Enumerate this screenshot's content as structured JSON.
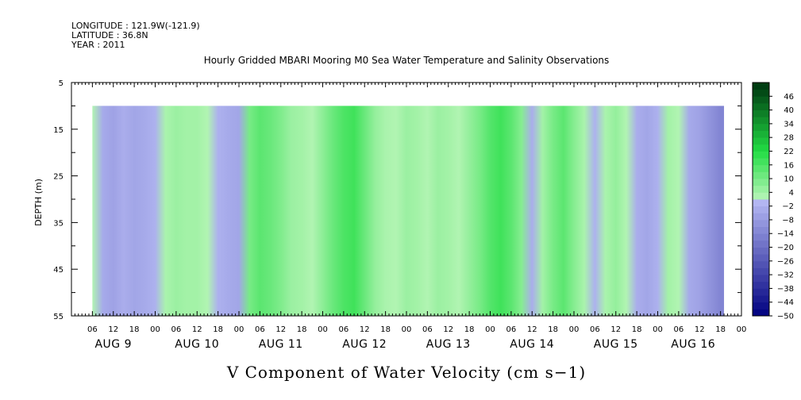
{
  "header": {
    "longitude": "LONGITUDE : 121.9W(-121.9)",
    "latitude": "LATITUDE : 36.8N",
    "year": "YEAR : 2011"
  },
  "chart_data": {
    "type": "heatmap",
    "title": "Hourly Gridded MBARI Mooring M0 Sea Water Temperature and Salinity Observations",
    "caption": "V Component of Water Velocity (cm s−1)",
    "ylabel": "DEPTH (m)",
    "xlabel": "",
    "ylim": [
      55,
      5
    ],
    "y_ticks": [
      5,
      15,
      25,
      35,
      45,
      55
    ],
    "y_minor_ticks": [
      10,
      20,
      30,
      40,
      50
    ],
    "x_range_hours": [
      0,
      192
    ],
    "data_start_hour": 6,
    "data_end_hour": 187,
    "data_top_depth": 10,
    "data_bottom_depth": 55,
    "x_hour_labels": [
      "06",
      "12",
      "18",
      "00",
      "06",
      "12",
      "18",
      "00",
      "06",
      "12",
      "18",
      "00",
      "06",
      "12",
      "18",
      "00",
      "06",
      "12",
      "18",
      "00",
      "06",
      "12",
      "18",
      "00",
      "06",
      "12",
      "18",
      "00",
      "06",
      "12",
      "18",
      "00"
    ],
    "day_labels": [
      "AUG  9",
      "AUG 10",
      "AUG 11",
      "AUG 12",
      "AUG 13",
      "AUG 14",
      "AUG 15",
      "AUG 16"
    ],
    "colorbar": {
      "min": -50,
      "max": 50,
      "step": 3,
      "labels": [
        "46",
        "40",
        "34",
        "28",
        "22",
        "16",
        "10",
        "4",
        "−2",
        "−8",
        "−14",
        "−20",
        "−26",
        "−32",
        "−38",
        "−44",
        "−50"
      ],
      "colors": {
        "neg_strong": "#000080",
        "neg_weak": "#b8bcf5",
        "pos_weak": "#b8f5b8",
        "pos_mid": "#22dd44",
        "pos_strong": "#003d12"
      }
    },
    "columns": [
      {
        "hour": 6,
        "v": 2
      },
      {
        "hour": 9,
        "v": -4
      },
      {
        "hour": 12,
        "v": -6
      },
      {
        "hour": 15,
        "v": -3
      },
      {
        "hour": 18,
        "v": -5
      },
      {
        "hour": 21,
        "v": -4
      },
      {
        "hour": 24,
        "v": -2
      },
      {
        "hour": 27,
        "v": 3
      },
      {
        "hour": 30,
        "v": 5
      },
      {
        "hour": 33,
        "v": 4
      },
      {
        "hour": 36,
        "v": 4
      },
      {
        "hour": 39,
        "v": 2
      },
      {
        "hour": 42,
        "v": -2
      },
      {
        "hour": 45,
        "v": -4
      },
      {
        "hour": 48,
        "v": -5
      },
      {
        "hour": 51,
        "v": 10
      },
      {
        "hour": 54,
        "v": 14
      },
      {
        "hour": 57,
        "v": 12
      },
      {
        "hour": 60,
        "v": 9
      },
      {
        "hour": 63,
        "v": 5
      },
      {
        "hour": 66,
        "v": 4
      },
      {
        "hour": 69,
        "v": 2
      },
      {
        "hour": 72,
        "v": 7
      },
      {
        "hour": 75,
        "v": 12
      },
      {
        "hour": 78,
        "v": 16
      },
      {
        "hour": 81,
        "v": 18
      },
      {
        "hour": 84,
        "v": 12
      },
      {
        "hour": 87,
        "v": 6
      },
      {
        "hour": 90,
        "v": 3
      },
      {
        "hour": 93,
        "v": 2
      },
      {
        "hour": 96,
        "v": 5
      },
      {
        "hour": 99,
        "v": 4
      },
      {
        "hour": 102,
        "v": 2
      },
      {
        "hour": 105,
        "v": 5
      },
      {
        "hour": 108,
        "v": 4
      },
      {
        "hour": 111,
        "v": 2
      },
      {
        "hour": 114,
        "v": 6
      },
      {
        "hour": 117,
        "v": 10
      },
      {
        "hour": 120,
        "v": 15
      },
      {
        "hour": 123,
        "v": 18
      },
      {
        "hour": 126,
        "v": 14
      },
      {
        "hour": 129,
        "v": 8
      },
      {
        "hour": 132,
        "v": -3
      },
      {
        "hour": 135,
        "v": 4
      },
      {
        "hour": 138,
        "v": 10
      },
      {
        "hour": 141,
        "v": 14
      },
      {
        "hour": 144,
        "v": 8
      },
      {
        "hour": 147,
        "v": 3
      },
      {
        "hour": 150,
        "v": -2
      },
      {
        "hour": 153,
        "v": 3
      },
      {
        "hour": 156,
        "v": 6
      },
      {
        "hour": 159,
        "v": 2
      },
      {
        "hour": 162,
        "v": -3
      },
      {
        "hour": 165,
        "v": -5
      },
      {
        "hour": 168,
        "v": -2
      },
      {
        "hour": 171,
        "v": 4
      },
      {
        "hour": 174,
        "v": 2
      },
      {
        "hour": 177,
        "v": -4
      },
      {
        "hour": 180,
        "v": -6
      },
      {
        "hour": 183,
        "v": -10
      },
      {
        "hour": 186,
        "v": -14
      }
    ]
  }
}
